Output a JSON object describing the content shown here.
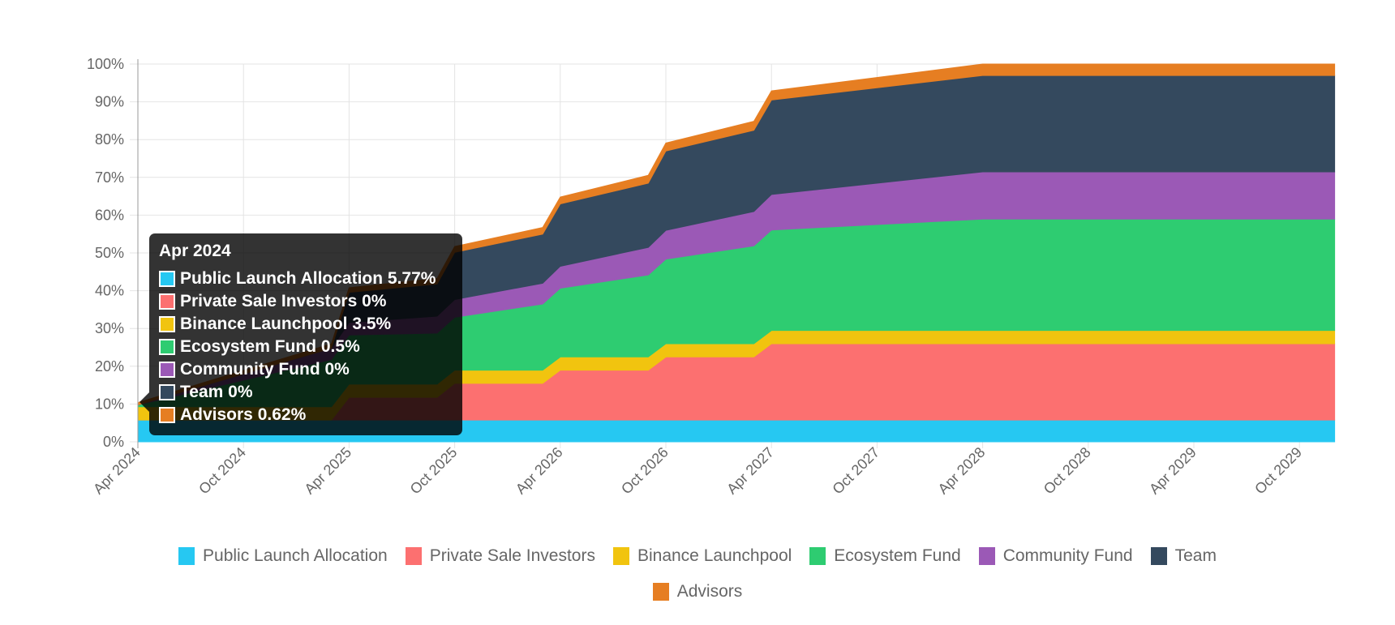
{
  "chart_data": {
    "type": "area",
    "stacked": true,
    "title": "",
    "xlabel": "",
    "ylabel": "",
    "ylim": [
      0,
      100
    ],
    "y_ticks": [
      "0%",
      "10%",
      "20%",
      "30%",
      "40%",
      "50%",
      "60%",
      "70%",
      "80%",
      "90%",
      "100%"
    ],
    "x_ticks": [
      "Apr 2024",
      "Oct 2024",
      "Apr 2025",
      "Oct 2025",
      "Apr 2026",
      "Oct 2026",
      "Apr 2027",
      "Oct 2027",
      "Apr 2028",
      "Oct 2028",
      "Apr 2029",
      "Oct 2029"
    ],
    "x_months_from_apr_2024": [
      0,
      11,
      12,
      17,
      18,
      23,
      24,
      29,
      30,
      35,
      36,
      48,
      68
    ],
    "grid": true,
    "legend_position": "bottom",
    "series": [
      {
        "name": "Public Launch Allocation",
        "color": "#26c8f2",
        "values": [
          5.77,
          5.77,
          5.77,
          5.77,
          5.77,
          5.77,
          5.77,
          5.77,
          5.77,
          5.77,
          5.77,
          5.77,
          5.77
        ]
      },
      {
        "name": "Private Sale Investors",
        "color": "#fc7070",
        "values": [
          0,
          0,
          6,
          6,
          9.7,
          9.7,
          13.2,
          13.2,
          16.7,
          16.7,
          20.2,
          20.2,
          20.2
        ]
      },
      {
        "name": "Binance Launchpool",
        "color": "#f1c40f",
        "values": [
          3.5,
          3.5,
          3.5,
          3.5,
          3.5,
          3.5,
          3.5,
          3.5,
          3.5,
          3.5,
          3.5,
          3.5,
          3.5
        ]
      },
      {
        "name": "Ecosystem Fund",
        "color": "#2ecc71",
        "values": [
          0.5,
          12.5,
          13,
          13.5,
          14,
          17.5,
          18.2,
          21.7,
          22.4,
          25.9,
          26.6,
          29.5,
          29.5
        ]
      },
      {
        "name": "Community Fund",
        "color": "#9b59b6",
        "values": [
          0,
          3,
          3.3,
          4.5,
          4.7,
          5.5,
          5.8,
          7.3,
          7.6,
          9.1,
          9.4,
          12.5,
          12.5
        ]
      },
      {
        "name": "Team",
        "color": "#34495e",
        "values": [
          0,
          0,
          8,
          8.5,
          12.5,
          13,
          16.5,
          17,
          21,
          21.5,
          25,
          25.5,
          25.5
        ]
      },
      {
        "name": "Advisors",
        "color": "#e67e22",
        "values": [
          0.62,
          1.17,
          1.22,
          1.47,
          1.52,
          1.77,
          1.82,
          2.07,
          2.12,
          2.37,
          2.42,
          3.02,
          3.02
        ]
      }
    ]
  },
  "tooltip": {
    "title": "Apr 2024",
    "rows": [
      {
        "label": "Public Launch Allocation 5.77%",
        "color": "#26c8f2"
      },
      {
        "label": "Private Sale Investors 0%",
        "color": "#fc7070"
      },
      {
        "label": "Binance Launchpool 3.5%",
        "color": "#f1c40f"
      },
      {
        "label": "Ecosystem Fund 0.5%",
        "color": "#2ecc71"
      },
      {
        "label": "Community Fund 0%",
        "color": "#9b59b6"
      },
      {
        "label": "Team 0%",
        "color": "#34495e"
      },
      {
        "label": "Advisors 0.62%",
        "color": "#e67e22"
      }
    ]
  },
  "legend": [
    {
      "label": "Public Launch Allocation",
      "color": "#26c8f2"
    },
    {
      "label": "Private Sale Investors",
      "color": "#fc7070"
    },
    {
      "label": "Binance Launchpool",
      "color": "#f1c40f"
    },
    {
      "label": "Ecosystem Fund",
      "color": "#2ecc71"
    },
    {
      "label": "Community Fund",
      "color": "#9b59b6"
    },
    {
      "label": "Team",
      "color": "#34495e"
    },
    {
      "label": "Advisors",
      "color": "#e67e22"
    }
  ]
}
